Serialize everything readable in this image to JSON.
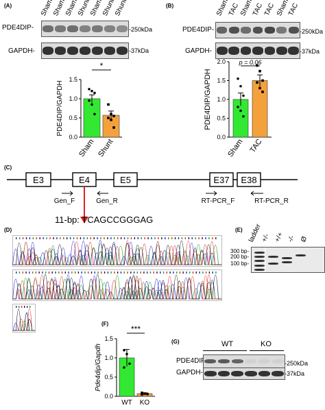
{
  "panels": {
    "A": {
      "label": "(A)",
      "lanes": [
        "Sham",
        "Sham",
        "Sham",
        "Shunt",
        "Sham",
        "Shunt",
        "Shunt"
      ],
      "blot_rows": [
        {
          "left": "PDE4DIP-",
          "right": "-250kDa"
        },
        {
          "left": "GAPDH-",
          "right": "-37kDa"
        }
      ],
      "chart": {
        "ylabel": "PDE4DIP/GAPDH",
        "sig": "*",
        "yticks": [
          "0.0",
          "0.5",
          "1.0",
          "1.5"
        ]
      }
    },
    "B": {
      "label": "(B)",
      "lanes": [
        "Sham",
        "TAC",
        "Sham",
        "TAC",
        "TAC",
        "Sham",
        "TAC"
      ],
      "blot_rows": [
        {
          "left": "PDE4DIP-",
          "right": "-250kDa"
        },
        {
          "left": "GAPDH-",
          "right": "-37kDa"
        }
      ],
      "chart": {
        "ylabel": "PDE4DIP/GAPDH",
        "sig": "p = 0.06",
        "yticks": [
          "0.0",
          "0.5",
          "1.0",
          "1.5",
          "2.0"
        ]
      }
    },
    "C": {
      "label": "(C)",
      "exons": [
        "E3",
        "E4",
        "E5",
        "E37",
        "E38"
      ],
      "primers": [
        "Gen_F",
        "Gen_R",
        "RT-PCR_F",
        "RT-PCR_R"
      ],
      "deletion": "11-bp: TCAGCCGGGAG"
    },
    "D": {
      "label": "(D)"
    },
    "E": {
      "label": "(E)",
      "lanes": [
        "ladder",
        "+/-",
        "+/+",
        "-/-",
        "Ø"
      ],
      "markers": [
        "300 bp-",
        "200 bp-",
        "100 bp-"
      ]
    },
    "F": {
      "label": "(F)",
      "ylabel": "Pde4dip/Gapdh",
      "sig": "***",
      "yticks": [
        "0.0",
        "0.5",
        "1.0",
        "1.5"
      ]
    },
    "G": {
      "label": "(G)",
      "groups": [
        "WT",
        "KO"
      ],
      "rows": [
        {
          "left": "PDE4DIP-",
          "right": "-250kDa"
        },
        {
          "left": "GAPDH-",
          "right": "-37kDa"
        }
      ]
    }
  },
  "chart_data": [
    {
      "type": "bar",
      "categories": [
        "Sham",
        "Shunt"
      ],
      "values": [
        1.0,
        0.57
      ],
      "errors": [
        0.1,
        0.11
      ],
      "points": [
        [
          1.25,
          1.2,
          1.15,
          0.95,
          0.85,
          0.6
        ],
        [
          0.85,
          0.6,
          0.55,
          0.5,
          0.45,
          0.25
        ]
      ],
      "colors": [
        "#33e833",
        "#f4a13c"
      ],
      "ylabel": "PDE4DIP/GAPDH",
      "ylim": [
        0,
        1.5
      ]
    },
    {
      "type": "bar",
      "categories": [
        "Sham",
        "TAC"
      ],
      "values": [
        1.0,
        1.5
      ],
      "errors": [
        0.17,
        0.15
      ],
      "points": [
        [
          1.55,
          1.35,
          1.1,
          0.8,
          0.7,
          0.55
        ],
        [
          1.9,
          1.75,
          1.5,
          1.45,
          1.3,
          1.2
        ]
      ],
      "colors": [
        "#33e833",
        "#f4a13c"
      ],
      "ylabel": "PDE4DIP/GAPDH",
      "ylim": [
        0,
        2.0
      ]
    },
    {
      "type": "bar",
      "categories": [
        "WT",
        "KO"
      ],
      "values": [
        1.0,
        0.07
      ],
      "errors": [
        0.22,
        0.02
      ],
      "points": [
        [
          1.2,
          1.1,
          0.85,
          0.75
        ],
        [
          0.09,
          0.07,
          0.06,
          0.05
        ]
      ],
      "colors": [
        "#33e833",
        "#f4a13c"
      ],
      "ylabel": "Pde4dip/Gapdh",
      "ylim": [
        0,
        1.5
      ]
    }
  ]
}
